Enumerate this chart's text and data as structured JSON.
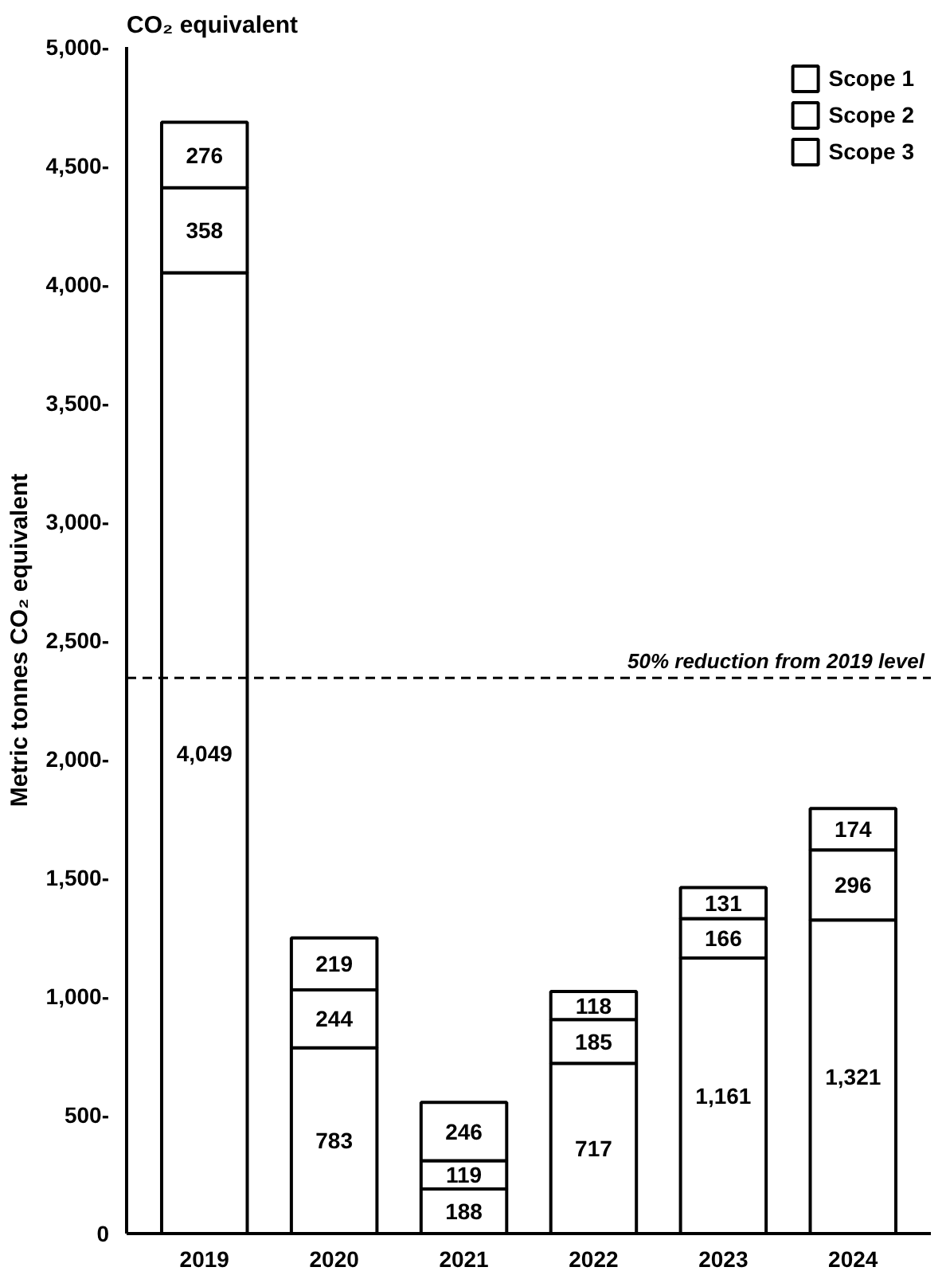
{
  "chart_data": {
    "type": "bar",
    "title": "CO₂ equivalent",
    "ylabel": "Metric tonnes CO₂ equivalent",
    "categories": [
      "2019",
      "2020",
      "2021",
      "2022",
      "2023",
      "2024"
    ],
    "stacked": true,
    "data_labels": true,
    "legend": "top right",
    "grid": false,
    "ylim": [
      0,
      5000
    ],
    "yticks": [
      0,
      {
        "value": 500,
        "label": "500-"
      },
      {
        "value": 1000,
        "label": "1,000-"
      },
      {
        "value": 1500,
        "label": "1,500-"
      },
      {
        "value": 2000,
        "label": "2,000-"
      },
      {
        "value": 2500,
        "label": "2,500-"
      },
      {
        "value": 3000,
        "label": "3,000-"
      },
      {
        "value": 3500,
        "label": "3,500-"
      },
      {
        "value": 4000,
        "label": "4,000-"
      },
      {
        "value": 4500,
        "label": "4,500-"
      },
      {
        "value": 5000,
        "label": "5,000-"
      }
    ],
    "series": [
      {
        "name": "Scope 3",
        "color": "#ffffff",
        "values": [
          4049,
          783,
          188,
          717,
          1161,
          1321
        ],
        "value_labels": [
          "4,049",
          "783",
          "188",
          "717",
          "1,161",
          "1,321"
        ]
      },
      {
        "name": "Scope 2",
        "color": "#ffffff",
        "values": [
          358,
          244,
          119,
          185,
          166,
          296
        ]
      },
      {
        "name": "Scope 1",
        "color": "#ffffff",
        "values": [
          276,
          219,
          246,
          118,
          131,
          174
        ]
      }
    ],
    "ref_lines": [
      {
        "axis": "y",
        "value": 2341.5,
        "label": "50% reduction from 2019 level",
        "line_style": "dashed",
        "color": "#000000"
      }
    ]
  }
}
